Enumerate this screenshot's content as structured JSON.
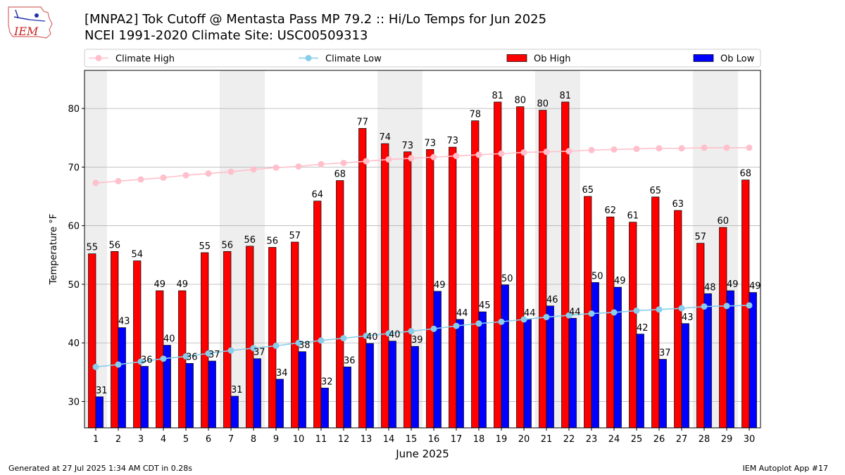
{
  "header": {
    "title_line1": "[MNPA2] Tok Cutoff @ Mentasta Pass MP 79.2 :: Hi/Lo Temps for Jun 2025",
    "title_line2": "NCEI 1991-2020 Climate Site: USC00509313",
    "logo_text": "IEM"
  },
  "footer": {
    "left": "Generated at 27 Jul 2025 1:34 AM CDT in 0.28s",
    "right": "IEM Autoplot App #17"
  },
  "colors": {
    "ob_high": "#ff0000",
    "ob_low": "#0000ff",
    "climate_high": "#ffc0cb",
    "climate_low": "#87ceeb",
    "weekend_shade": "#eeeeee"
  },
  "chart_data": {
    "type": "bar",
    "xlabel": "June 2025",
    "ylabel": "Temperature °F",
    "ylim": [
      25.5,
      86.5
    ],
    "yticks": [
      30,
      40,
      50,
      60,
      70,
      80
    ],
    "grid": "horizontal",
    "legend_placement": "top, above plot",
    "categories": [
      "1",
      "2",
      "3",
      "4",
      "5",
      "6",
      "7",
      "8",
      "9",
      "10",
      "11",
      "12",
      "13",
      "14",
      "15",
      "16",
      "17",
      "18",
      "19",
      "20",
      "21",
      "22",
      "23",
      "24",
      "25",
      "26",
      "27",
      "28",
      "29",
      "30"
    ],
    "shaded_days": [
      1,
      7,
      8,
      14,
      15,
      21,
      22,
      28,
      29
    ],
    "series": [
      {
        "name": "Ob High",
        "kind": "bar",
        "color": "#ff0000",
        "values": [
          55.2,
          55.6,
          54.0,
          48.9,
          48.9,
          55.4,
          55.6,
          56.5,
          56.3,
          57.2,
          64.2,
          67.7,
          76.6,
          74.0,
          72.6,
          73.0,
          73.4,
          77.9,
          81.1,
          80.3,
          79.7,
          81.1,
          65.0,
          61.5,
          60.6,
          64.9,
          62.6,
          57.0,
          59.7,
          67.8
        ],
        "labels": [
          "55",
          "56",
          "54",
          "49",
          "49",
          "55",
          "56",
          "56",
          "56",
          "57",
          "64",
          "68",
          "77",
          "74",
          "73",
          "73",
          "73",
          "78",
          "81",
          "80",
          "80",
          "81",
          "65",
          "62",
          "61",
          "65",
          "63",
          "57",
          "60",
          "68"
        ]
      },
      {
        "name": "Ob Low",
        "kind": "bar",
        "color": "#0000ff",
        "values": [
          30.8,
          42.6,
          36.0,
          39.6,
          36.5,
          36.9,
          30.9,
          37.3,
          33.8,
          38.5,
          32.3,
          35.9,
          39.9,
          40.3,
          39.4,
          48.8,
          44.0,
          45.3,
          49.9,
          44.0,
          46.3,
          44.2,
          50.3,
          49.5,
          41.5,
          37.2,
          43.3,
          48.4,
          48.9,
          48.6
        ],
        "labels": [
          "31",
          "43",
          "36",
          "40",
          "36",
          "37",
          "31",
          "37",
          "34",
          "38",
          "32",
          "36",
          "40",
          "40",
          "39",
          "49",
          "44",
          "45",
          "50",
          "44",
          "46",
          "44",
          "50",
          "49",
          "42",
          "37",
          "43",
          "48",
          "49",
          "49"
        ]
      },
      {
        "name": "Climate High",
        "kind": "line",
        "color": "#ffc0cb",
        "values": [
          67.3,
          67.6,
          67.9,
          68.2,
          68.6,
          68.9,
          69.2,
          69.6,
          69.9,
          70.1,
          70.5,
          70.7,
          71.0,
          71.3,
          71.5,
          71.7,
          71.9,
          72.1,
          72.3,
          72.5,
          72.6,
          72.7,
          72.9,
          73.0,
          73.1,
          73.2,
          73.2,
          73.3,
          73.3,
          73.3
        ]
      },
      {
        "name": "Climate Low",
        "kind": "line",
        "color": "#87ceeb",
        "values": [
          35.9,
          36.3,
          36.8,
          37.3,
          37.7,
          38.2,
          38.7,
          39.1,
          39.5,
          40.0,
          40.4,
          40.8,
          41.2,
          41.6,
          42.0,
          42.4,
          42.9,
          43.3,
          43.6,
          44.0,
          44.4,
          44.7,
          45.0,
          45.2,
          45.5,
          45.7,
          45.9,
          46.2,
          46.3,
          46.4
        ]
      }
    ]
  }
}
